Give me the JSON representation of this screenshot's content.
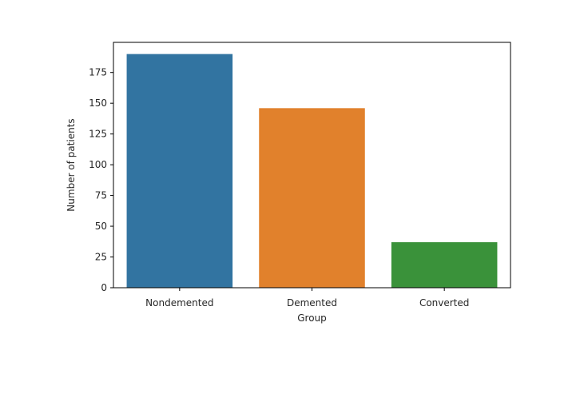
{
  "chart_data": {
    "type": "bar",
    "categories": [
      "Nondemented",
      "Demented",
      "Converted"
    ],
    "values": [
      190,
      146,
      37
    ],
    "colors": [
      "#3274a1",
      "#e1812c",
      "#3a923a"
    ],
    "xlabel": "Group",
    "ylabel": "Number of patients",
    "ylim": [
      0,
      199.5
    ],
    "yticks": [
      0,
      25,
      50,
      75,
      100,
      125,
      150,
      175
    ],
    "grid": false,
    "legend": "none"
  }
}
